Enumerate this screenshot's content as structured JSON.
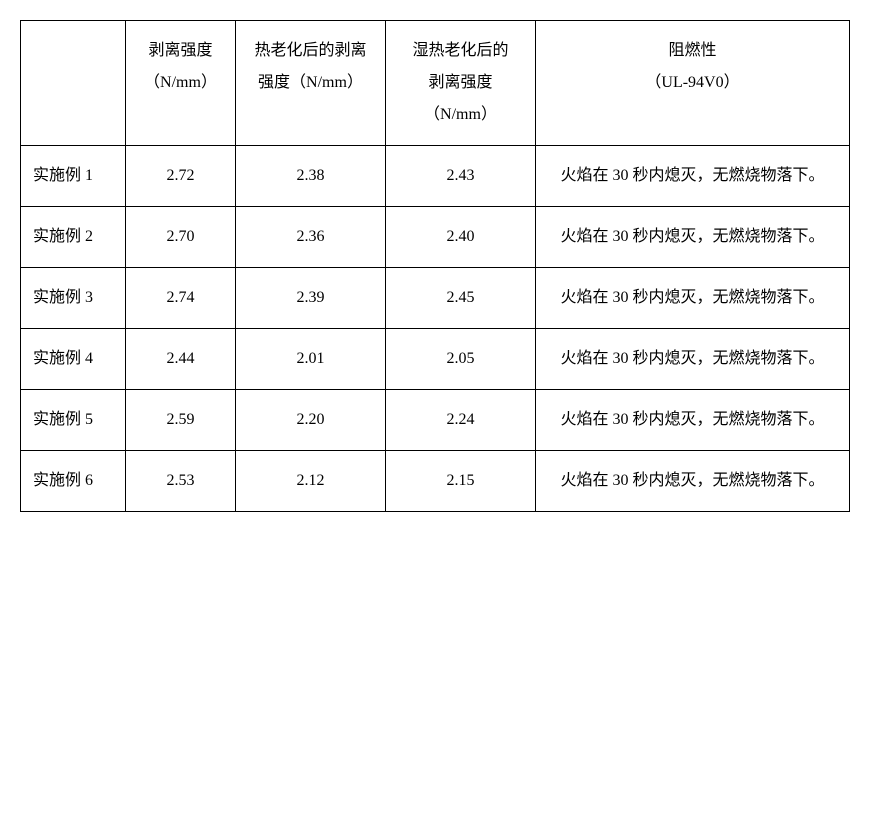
{
  "table": {
    "columns": [
      {
        "label": ""
      },
      {
        "label_line1": "剥离强度",
        "label_line2": "（N/mm）"
      },
      {
        "label_line1": "热老化后的剥离",
        "label_line2": "强度（N/mm）"
      },
      {
        "label_line1": "湿热老化后的",
        "label_line2": "剥离强度",
        "label_line3": "（N/mm）"
      },
      {
        "label_line1": "阻燃性",
        "label_line2": "（UL-94V0）"
      }
    ],
    "rows": [
      {
        "name": "实施例 1",
        "peel": "2.72",
        "thermal": "2.38",
        "humid": "2.43",
        "flame": "火焰在 30 秒内熄灭，无燃烧物落下。"
      },
      {
        "name": "实施例 2",
        "peel": "2.70",
        "thermal": "2.36",
        "humid": "2.40",
        "flame": "火焰在 30 秒内熄灭，无燃烧物落下。"
      },
      {
        "name": "实施例 3",
        "peel": "2.74",
        "thermal": "2.39",
        "humid": "2.45",
        "flame": "火焰在 30 秒内熄灭，无燃烧物落下。"
      },
      {
        "name": "实施例 4",
        "peel": "2.44",
        "thermal": "2.01",
        "humid": "2.05",
        "flame": "火焰在 30 秒内熄灭，无燃烧物落下。"
      },
      {
        "name": "实施例 5",
        "peel": "2.59",
        "thermal": "2.20",
        "humid": "2.24",
        "flame": "火焰在 30 秒内熄灭，无燃烧物落下。"
      },
      {
        "name": "实施例 6",
        "peel": "2.53",
        "thermal": "2.12",
        "humid": "2.15",
        "flame": "火焰在 30 秒内熄灭，无燃烧物落下。"
      }
    ]
  }
}
